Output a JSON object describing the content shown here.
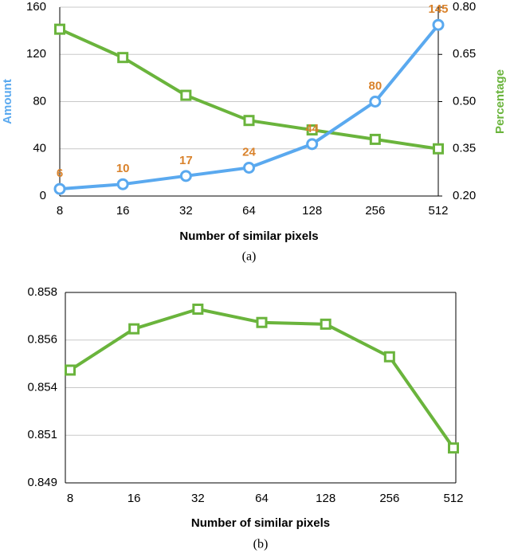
{
  "chart_data": [
    {
      "type": "line",
      "caption": "(a)",
      "x_label": "Number of similar pixels",
      "y_label": "Amount",
      "y2_label": "Percentage",
      "categories": [
        "8",
        "16",
        "32",
        "64",
        "128",
        "256",
        "512"
      ],
      "ylim": [
        0,
        160
      ],
      "yticks": [
        0,
        40,
        80,
        120,
        160
      ],
      "y2lim": [
        0.2,
        0.8
      ],
      "y2ticks": [
        {
          "value": 0.2,
          "label": "0.20"
        },
        0.35,
        {
          "value": 0.5,
          "label": "0.50"
        },
        0.65,
        {
          "value": 0.8,
          "label": "0.80"
        }
      ],
      "grid": true,
      "y_label_color": "#5aa9ef",
      "y2_label_color": "#6ab43c",
      "data_label_color": "#d9822b",
      "series": [
        {
          "color": "#5aa9ef",
          "marker": "circle",
          "show_values": true,
          "values": [
            6,
            10,
            17,
            24,
            44,
            80,
            145
          ]
        },
        {
          "color": "#6ab43c",
          "marker": "square",
          "axis": "y2",
          "values": [
            0.73,
            0.64,
            0.52,
            0.44,
            0.41,
            0.38,
            0.35
          ]
        }
      ]
    },
    {
      "type": "line",
      "caption": "(b)",
      "x_label": "Number of similar pixels",
      "categories": [
        "8",
        "16",
        "32",
        "64",
        "128",
        "256",
        "512"
      ],
      "ylim": [
        0.849,
        0.858
      ],
      "yticks": [
        0.849,
        {
          "value": 0.85125,
          "label": "0.851"
        },
        {
          "value": 0.8535,
          "label": "0.854"
        },
        {
          "value": 0.85575,
          "label": "0.856"
        },
        0.858
      ],
      "grid": true,
      "series": [
        {
          "color": "#6ab43c",
          "marker": "square",
          "values": [
            0.85433,
            0.85628,
            0.85721,
            0.85658,
            0.8565,
            0.85496,
            0.85065
          ]
        }
      ]
    }
  ]
}
